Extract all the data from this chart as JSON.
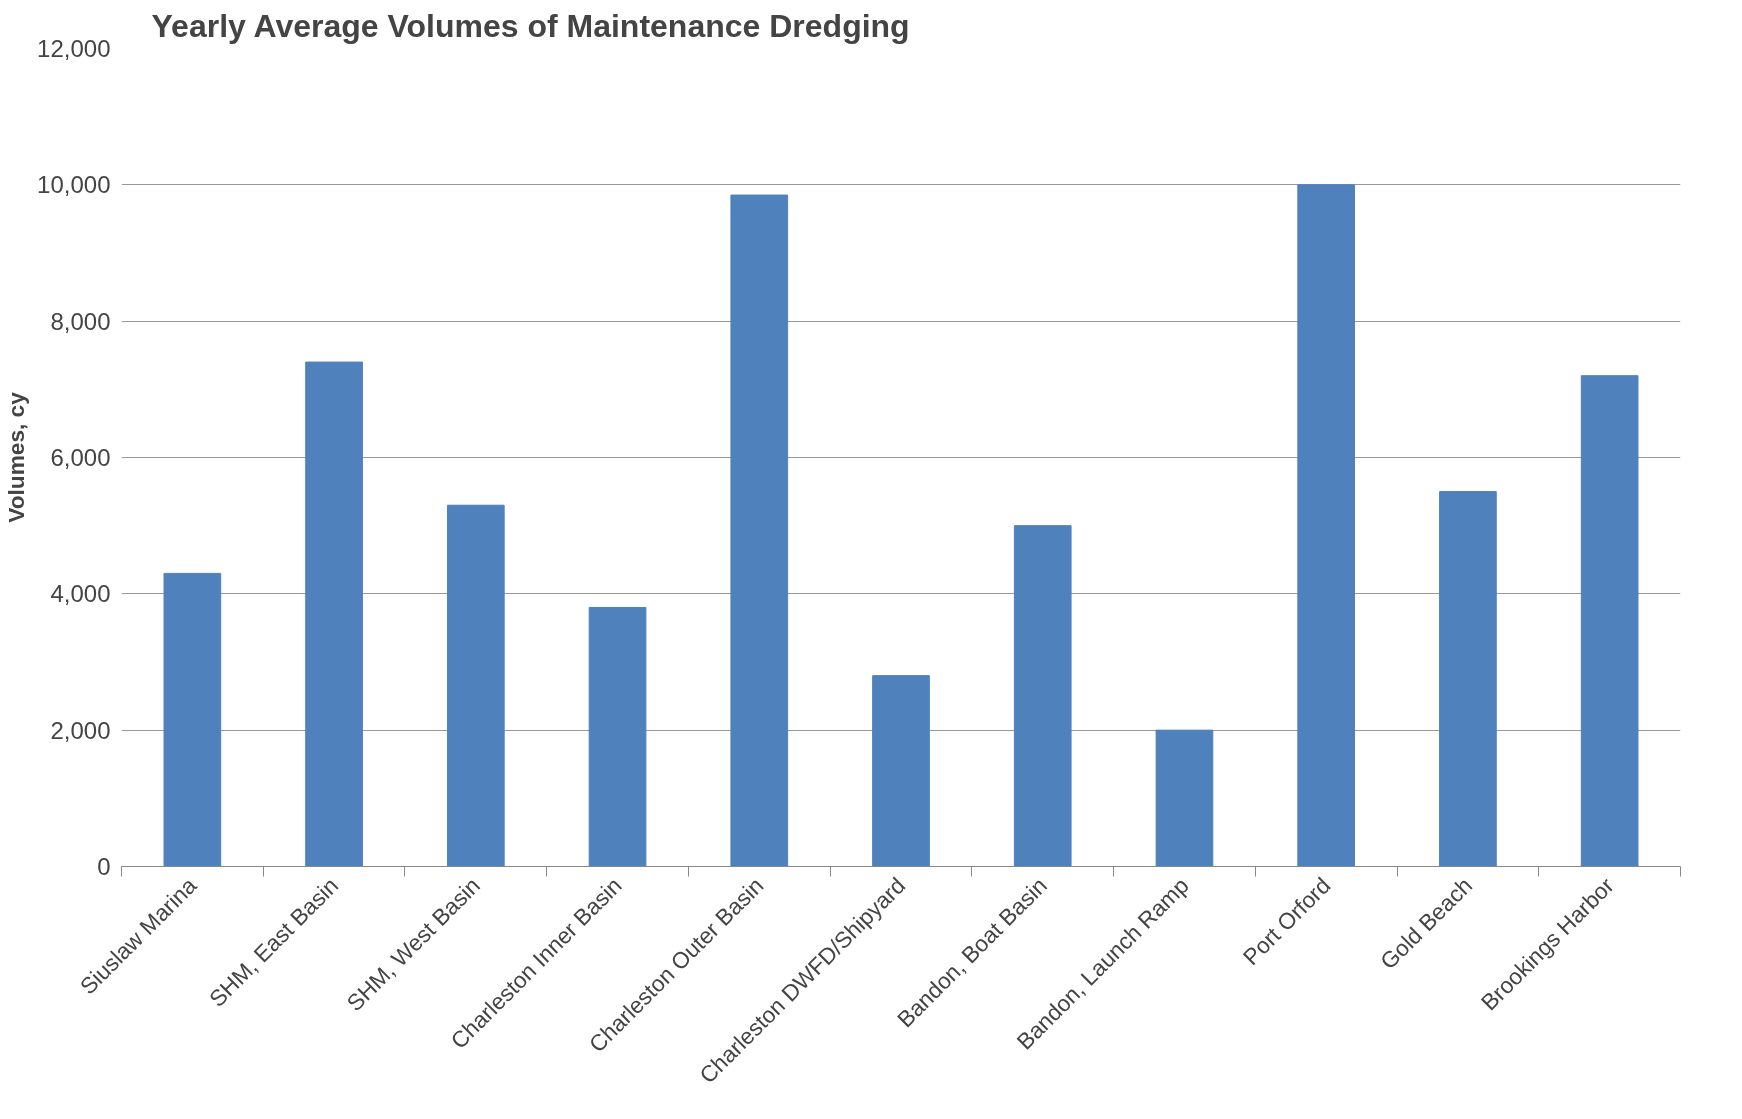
{
  "chart_data": {
    "type": "bar",
    "title": "Yearly Average Volumes of Maintenance Dredging",
    "ylabel": "Volumes, cy",
    "categories": [
      "Siuslaw Marina",
      "SHM, East Basin",
      "SHM, West Basin",
      "Charleston Inner Basin",
      "Charleston Outer Basin",
      "Charleston DWFD/Shipyard",
      "Bandon, Boat Basin",
      "Bandon, Launch Ramp",
      "Port Orford",
      "Gold Beach",
      "Brookings Harbor"
    ],
    "values": [
      4300,
      7400,
      5300,
      3800,
      9850,
      2800,
      5000,
      2000,
      10000,
      5500,
      7200
    ],
    "color": "#4f81bd",
    "ylim": [
      0,
      12000
    ],
    "yticks": [
      {
        "value": 0,
        "label": "0"
      },
      {
        "value": 2000,
        "label": "2,000"
      },
      {
        "value": 4000,
        "label": "4,000"
      },
      {
        "value": 6000,
        "label": "6,000"
      },
      {
        "value": 8000,
        "label": "8,000"
      },
      {
        "value": 10000,
        "label": "10,000"
      },
      {
        "value": 12000,
        "label": "12,000"
      }
    ],
    "grid": "y"
  }
}
